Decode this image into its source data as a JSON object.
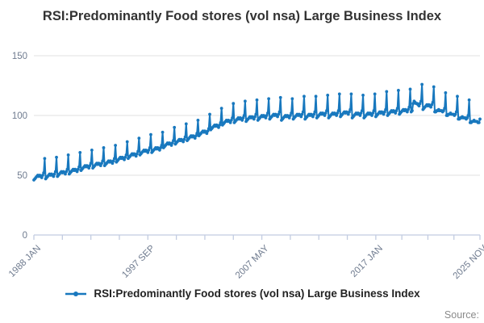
{
  "title": "RSI:Predominantly Food stores (vol nsa) Large Business Index",
  "source_label": "Source:",
  "legend": {
    "label": "RSI:Predominantly Food stores (vol nsa) Large Business Index"
  },
  "chart_data": {
    "type": "line",
    "title": "RSI:Predominantly Food stores (vol nsa) Large Business Index",
    "xlabel": "",
    "ylabel": "",
    "frequency": "monthly",
    "start": "1988 JAN",
    "end": "2025 NOV",
    "ylim": [
      0,
      150
    ],
    "y_ticks": [
      0,
      50,
      100,
      150
    ],
    "grid": true,
    "legend_position": "bottom",
    "x_tick_labels": [
      "1988 JAN",
      "1997 SEP",
      "2007 MAY",
      "2017 JAN",
      "2025 NOV"
    ],
    "x_tick_label_months": [
      0,
      116,
      232,
      348,
      454
    ],
    "line_color": "#1878be",
    "grid_color": "#e2e2e2",
    "axis_color": "#c2cce1",
    "tick_label_color": "#6f7b8f",
    "series": [
      {
        "name": "RSI:Predominantly Food stores (vol nsa) Large Business Index",
        "values": [
          46,
          47,
          48,
          49,
          50,
          49,
          50,
          49,
          48,
          50,
          52,
          64,
          47,
          48,
          49,
          50,
          51,
          50,
          51,
          50,
          49,
          51,
          53,
          65,
          49,
          50,
          51,
          52,
          53,
          52,
          53,
          52,
          51,
          53,
          55,
          67,
          51,
          52,
          53,
          54,
          55,
          54,
          55,
          54,
          53,
          55,
          57,
          69,
          54,
          55,
          56,
          57,
          58,
          57,
          58,
          57,
          56,
          58,
          60,
          71,
          56,
          57,
          58,
          59,
          60,
          59,
          60,
          59,
          58,
          60,
          62,
          73,
          58,
          59,
          60,
          61,
          62,
          61,
          62,
          61,
          60,
          62,
          64,
          75,
          61,
          62,
          63,
          64,
          65,
          64,
          65,
          64,
          63,
          65,
          67,
          78,
          64,
          65,
          66,
          67,
          68,
          67,
          68,
          67,
          66,
          68,
          70,
          81,
          67,
          68,
          69,
          70,
          71,
          70,
          71,
          70,
          69,
          71,
          73,
          84,
          69,
          70,
          71,
          72,
          73,
          72,
          73,
          72,
          71,
          73,
          75,
          86,
          73,
          74,
          75,
          76,
          77,
          76,
          77,
          76,
          75,
          77,
          79,
          90,
          76,
          77,
          78,
          79,
          80,
          79,
          80,
          79,
          78,
          80,
          82,
          93,
          79,
          80,
          81,
          82,
          83,
          82,
          83,
          82,
          81,
          83,
          85,
          96,
          83,
          84,
          85,
          86,
          87,
          86,
          87,
          86,
          85,
          87,
          89,
          101,
          88,
          89,
          90,
          91,
          92,
          91,
          92,
          91,
          90,
          92,
          94,
          106,
          92,
          93,
          94,
          95,
          96,
          95,
          96,
          95,
          94,
          96,
          98,
          110,
          94,
          95,
          96,
          97,
          98,
          97,
          98,
          97,
          96,
          98,
          100,
          112,
          95,
          96,
          97,
          98,
          99,
          98,
          99,
          98,
          97,
          99,
          101,
          113,
          96,
          97,
          98,
          99,
          100,
          99,
          100,
          99,
          98,
          100,
          102,
          114,
          97,
          98,
          99,
          100,
          101,
          100,
          101,
          100,
          99,
          101,
          103,
          115,
          96,
          97,
          98,
          99,
          100,
          99,
          100,
          99,
          98,
          100,
          102,
          114,
          97,
          98,
          99,
          100,
          101,
          100,
          101,
          100,
          99,
          101,
          103,
          116,
          97,
          98,
          99,
          100,
          101,
          100,
          101,
          100,
          99,
          101,
          103,
          116,
          98,
          99,
          100,
          101,
          102,
          101,
          102,
          101,
          100,
          102,
          104,
          117,
          98,
          99,
          100,
          101,
          102,
          101,
          102,
          101,
          100,
          102,
          104,
          118,
          99,
          100,
          101,
          102,
          103,
          102,
          103,
          102,
          101,
          103,
          105,
          118,
          98,
          99,
          100,
          101,
          102,
          101,
          102,
          101,
          100,
          102,
          104,
          117,
          98,
          99,
          100,
          101,
          102,
          101,
          102,
          101,
          100,
          102,
          104,
          118,
          99,
          100,
          101,
          102,
          103,
          102,
          103,
          102,
          101,
          103,
          105,
          120,
          100,
          101,
          102,
          103,
          104,
          103,
          104,
          103,
          102,
          104,
          106,
          121,
          101,
          102,
          103,
          104,
          105,
          104,
          105,
          104,
          103,
          105,
          107,
          122,
          103,
          104,
          110,
          112,
          111,
          110,
          110,
          109,
          108,
          110,
          112,
          126,
          105,
          106,
          107,
          108,
          109,
          108,
          109,
          108,
          107,
          109,
          111,
          124,
          103,
          103,
          104,
          104,
          105,
          104,
          104,
          104,
          103,
          104,
          106,
          119,
          100,
          100,
          101,
          101,
          102,
          101,
          101,
          101,
          100,
          101,
          103,
          116,
          97,
          97,
          98,
          98,
          99,
          98,
          98,
          98,
          97,
          98,
          100,
          113,
          94,
          94,
          95,
          95,
          96,
          95,
          95,
          95,
          94,
          94,
          97
        ]
      }
    ]
  }
}
